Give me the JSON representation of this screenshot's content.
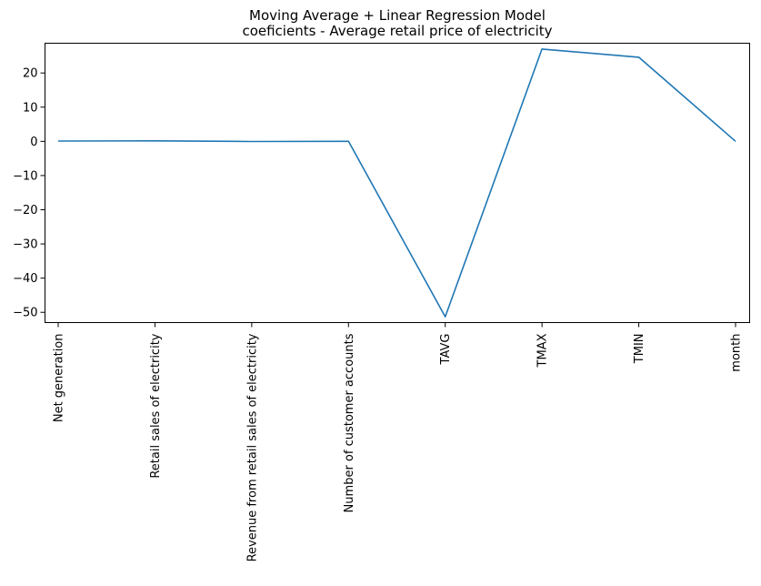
{
  "chart_data": {
    "type": "line",
    "title": "Moving Average + Linear Regression Model\ncoeficients - Average retail price of electricity",
    "xlabel": "",
    "ylabel": "",
    "categories": [
      "Net generation",
      "Retail sales of electricity",
      "Revenue from retail sales of electricity",
      "Number of customer accounts",
      "TAVG",
      "TMAX",
      "TMIN",
      "month"
    ],
    "series": [
      {
        "values": [
          0.1,
          0.15,
          -0.05,
          0.0,
          -51.3,
          27.0,
          24.6,
          0.0
        ]
      }
    ],
    "ylim": [
      -53,
      28.7
    ],
    "yticks": [
      20,
      10,
      0,
      -10,
      -20,
      -30,
      -40,
      -50
    ],
    "ytick_labels": [
      "20",
      "10",
      "0",
      "−10",
      "−20",
      "−30",
      "−40",
      "−50"
    ],
    "grid": false,
    "line_color": "#1f77b4"
  }
}
